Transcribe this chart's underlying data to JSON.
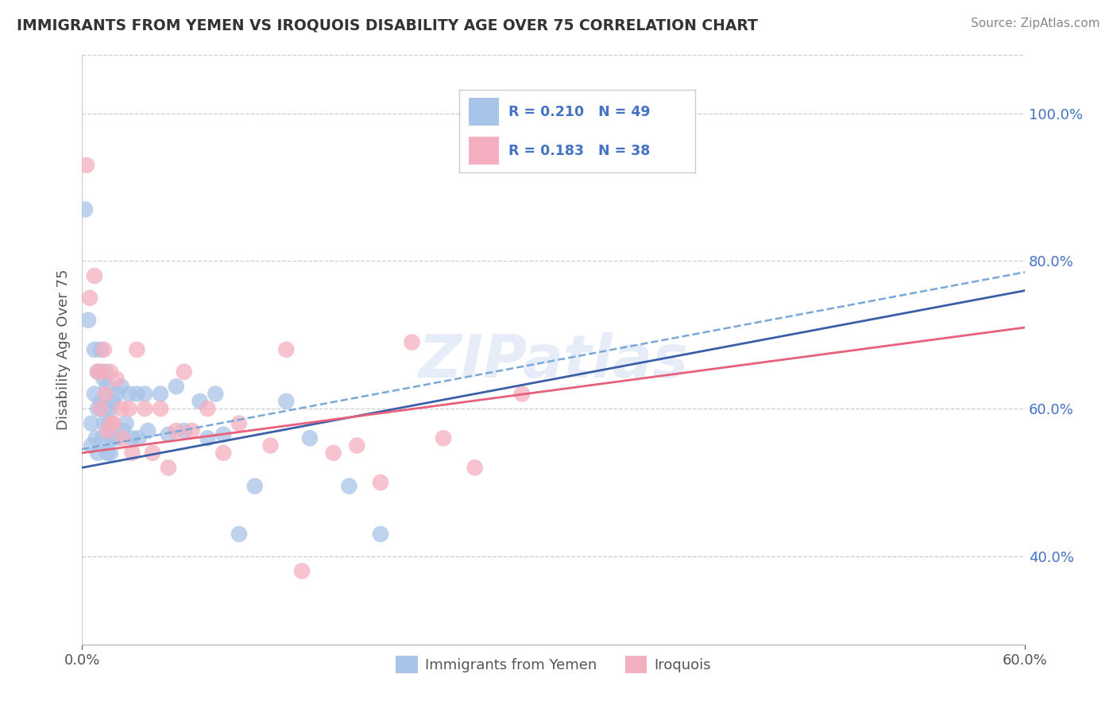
{
  "title": "IMMIGRANTS FROM YEMEN VS IROQUOIS DISABILITY AGE OVER 75 CORRELATION CHART",
  "source": "Source: ZipAtlas.com",
  "ylabel": "Disability Age Over 75",
  "legend_label1": "Immigrants from Yemen",
  "legend_label2": "Iroquois",
  "legend_R1": "R = 0.210",
  "legend_N1": "N = 49",
  "legend_R2": "R = 0.183",
  "legend_N2": "N = 38",
  "xlim": [
    0.0,
    0.6
  ],
  "ylim": [
    0.28,
    1.08
  ],
  "yticks": [
    0.4,
    0.6,
    0.8,
    1.0
  ],
  "ytick_labels": [
    "40.0%",
    "60.0%",
    "80.0%",
    "100.0%"
  ],
  "color_blue": "#a8c4e8",
  "color_pink": "#f4afc0",
  "trendline_blue": "#3a5fa8",
  "trendline_pink": "#e8607a",
  "background_color": "#ffffff",
  "watermark": "ZIPatlas",
  "blue_scatter_x": [
    0.002,
    0.004,
    0.006,
    0.006,
    0.008,
    0.008,
    0.009,
    0.01,
    0.01,
    0.01,
    0.012,
    0.012,
    0.013,
    0.014,
    0.014,
    0.015,
    0.015,
    0.016,
    0.016,
    0.017,
    0.018,
    0.018,
    0.019,
    0.02,
    0.022,
    0.022,
    0.025,
    0.026,
    0.028,
    0.03,
    0.032,
    0.035,
    0.036,
    0.04,
    0.042,
    0.05,
    0.055,
    0.06,
    0.065,
    0.075,
    0.08,
    0.085,
    0.09,
    0.1,
    0.11,
    0.13,
    0.145,
    0.17,
    0.19
  ],
  "blue_scatter_y": [
    0.87,
    0.72,
    0.58,
    0.55,
    0.68,
    0.62,
    0.56,
    0.65,
    0.6,
    0.54,
    0.68,
    0.61,
    0.56,
    0.64,
    0.58,
    0.65,
    0.6,
    0.54,
    0.63,
    0.58,
    0.6,
    0.54,
    0.56,
    0.61,
    0.62,
    0.56,
    0.63,
    0.57,
    0.58,
    0.62,
    0.56,
    0.62,
    0.56,
    0.62,
    0.57,
    0.62,
    0.565,
    0.63,
    0.57,
    0.61,
    0.56,
    0.62,
    0.565,
    0.43,
    0.495,
    0.61,
    0.56,
    0.495,
    0.43
  ],
  "pink_scatter_x": [
    0.003,
    0.005,
    0.008,
    0.01,
    0.012,
    0.012,
    0.014,
    0.015,
    0.016,
    0.018,
    0.019,
    0.02,
    0.022,
    0.025,
    0.026,
    0.03,
    0.032,
    0.035,
    0.04,
    0.045,
    0.05,
    0.055,
    0.06,
    0.065,
    0.07,
    0.08,
    0.09,
    0.1,
    0.12,
    0.13,
    0.14,
    0.16,
    0.175,
    0.19,
    0.21,
    0.23,
    0.25,
    0.28
  ],
  "pink_scatter_y": [
    0.93,
    0.75,
    0.78,
    0.65,
    0.65,
    0.6,
    0.68,
    0.62,
    0.57,
    0.65,
    0.58,
    0.58,
    0.64,
    0.6,
    0.56,
    0.6,
    0.54,
    0.68,
    0.6,
    0.54,
    0.6,
    0.52,
    0.57,
    0.65,
    0.57,
    0.6,
    0.54,
    0.58,
    0.55,
    0.68,
    0.38,
    0.54,
    0.55,
    0.5,
    0.69,
    0.56,
    0.52,
    0.62
  ],
  "trend_blue_x0": 0.0,
  "trend_blue_x1": 0.6,
  "trend_blue_y0": 0.52,
  "trend_blue_y1": 0.76,
  "trend_blue_dash_y0": 0.545,
  "trend_blue_dash_y1": 0.785,
  "trend_pink_y0": 0.54,
  "trend_pink_y1": 0.71
}
